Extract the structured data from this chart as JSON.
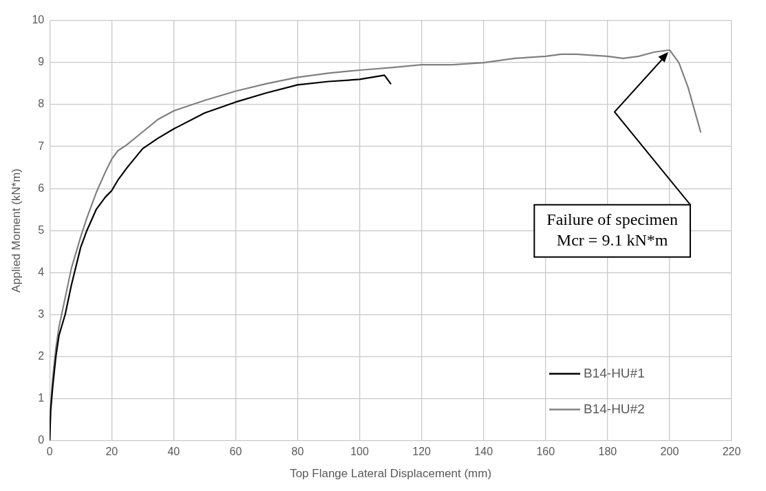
{
  "chart_data": {
    "type": "line",
    "xlabel": "Top Flange Lateral Displacement (mm)",
    "ylabel": "Applied Moment (kN*m)",
    "xlim": [
      0,
      220
    ],
    "xticks": [
      0,
      20,
      40,
      60,
      80,
      100,
      120,
      140,
      160,
      180,
      200,
      220
    ],
    "ylim": [
      0,
      10
    ],
    "yticks": [
      0,
      1,
      2,
      3,
      4,
      5,
      6,
      7,
      8,
      9,
      10
    ],
    "grid": true,
    "legend": "bottom right",
    "marker": "none",
    "line_style": "solid",
    "series": [
      {
        "name": "B14-HU#1",
        "color": "#000000",
        "x": [
          0,
          0.3,
          1,
          2,
          3,
          5,
          7,
          10,
          12,
          15,
          18,
          20,
          22,
          25,
          30,
          35,
          40,
          50,
          60,
          70,
          80,
          90,
          100,
          108,
          110
        ],
        "values": [
          0,
          0.7,
          1.3,
          2.0,
          2.5,
          3.0,
          3.7,
          4.6,
          5.0,
          5.5,
          5.8,
          5.95,
          6.2,
          6.5,
          6.95,
          7.2,
          7.42,
          7.8,
          8.06,
          8.28,
          8.47,
          8.55,
          8.6,
          8.7,
          8.5
        ]
      },
      {
        "name": "B14-HU#2",
        "color": "#808080",
        "x": [
          0,
          0.3,
          1,
          2,
          3,
          5,
          7,
          10,
          12,
          15,
          18,
          20,
          22,
          25,
          30,
          35,
          40,
          50,
          60,
          70,
          80,
          90,
          100,
          110,
          120,
          130,
          140,
          150,
          160,
          165,
          170,
          180,
          185,
          190,
          195,
          200,
          203,
          206,
          210
        ],
        "values": [
          0,
          0.8,
          1.5,
          2.2,
          2.7,
          3.4,
          4.1,
          4.85,
          5.3,
          5.9,
          6.4,
          6.7,
          6.9,
          7.05,
          7.35,
          7.65,
          7.85,
          8.1,
          8.32,
          8.5,
          8.65,
          8.75,
          8.82,
          8.88,
          8.95,
          8.95,
          9.0,
          9.1,
          9.15,
          9.2,
          9.2,
          9.15,
          9.1,
          9.15,
          9.25,
          9.3,
          9.0,
          8.4,
          7.35
        ]
      }
    ],
    "annotations": [
      {
        "text": "Failure of specimen\nMcr = 9.1 kN*m",
        "x": 200,
        "y": 9.3
      }
    ]
  }
}
